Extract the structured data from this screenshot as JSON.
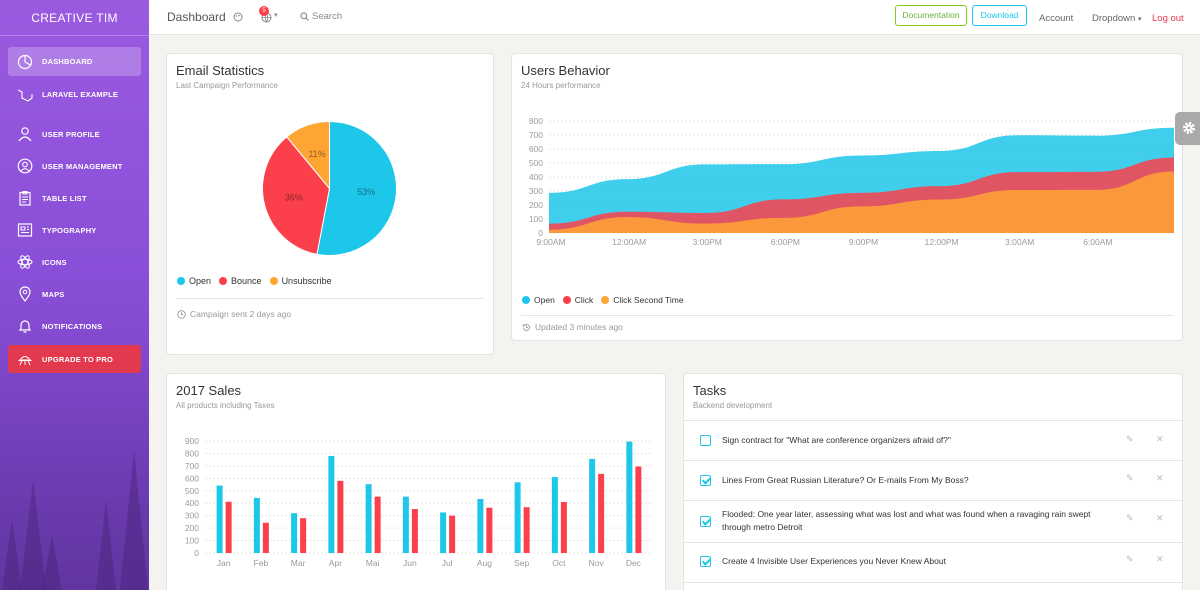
{
  "sidebar": {
    "brand": "CREATIVE TIM",
    "items": [
      {
        "label": "DASHBOARD",
        "icon": "chart-pie-icon"
      },
      {
        "label": "LARAVEL EXAMPLE",
        "icon": "laravel-icon"
      },
      {
        "label": "USER PROFILE",
        "icon": "user-icon"
      },
      {
        "label": "USER MANAGEMENT",
        "icon": "user-circle-icon"
      },
      {
        "label": "TABLE LIST",
        "icon": "clipboard-icon"
      },
      {
        "label": "TYPOGRAPHY",
        "icon": "news-paper-icon"
      },
      {
        "label": "ICONS",
        "icon": "atom-icon"
      },
      {
        "label": "MAPS",
        "icon": "map-pin-icon"
      },
      {
        "label": "NOTIFICATIONS",
        "icon": "bell-icon"
      },
      {
        "label": "UPGRADE TO PRO",
        "icon": "alien-icon"
      }
    ]
  },
  "topbar": {
    "title": "Dashboard",
    "notification_count": "5",
    "search": "Search",
    "documentation": "Documentation",
    "download": "Download",
    "account": "Account",
    "dropdown": "Dropdown",
    "logout": "Log out"
  },
  "email_stats": {
    "title": "Email Statistics",
    "subtitle": "Last Campaign Performance",
    "footer": "Campaign sent 2 days ago"
  },
  "users_behavior": {
    "title": "Users Behavior",
    "subtitle": "24 Hours performance",
    "footer": "Updated 3 minutes ago"
  },
  "sales": {
    "title": "2017 Sales",
    "subtitle": "All products including Taxes"
  },
  "tasks": {
    "title": "Tasks",
    "subtitle": "Backend development",
    "items": [
      {
        "text": "Sign contract for \"What are conference organizers afraid of?\"",
        "checked": false
      },
      {
        "text": "Lines From Great Russian Literature? Or E-mails From My Boss?",
        "checked": true
      },
      {
        "text": "Flooded: One year later, assessing what was lost and what was found when a ravaging rain swept through metro Detroit",
        "checked": true
      },
      {
        "text": "Create 4 Invisible User Experiences you Never Knew About",
        "checked": true
      }
    ]
  },
  "colors": {
    "cyan": "#1dc7ea",
    "red": "#fb404b",
    "orange": "#ffa534",
    "purple": "#9368e9",
    "pro": "#e2394f"
  },
  "chart_data": [
    {
      "type": "pie",
      "name": "Email Statistics",
      "slices": [
        {
          "label": "Open",
          "value": 53,
          "text": "53%",
          "color": "#1dc7ea"
        },
        {
          "label": "Bounce",
          "value": 36,
          "text": "36%",
          "color": "#fb404b"
        },
        {
          "label": "Unsubscribe",
          "value": 11,
          "text": "11%",
          "color": "#ffa534"
        }
      ]
    },
    {
      "type": "area",
      "name": "Users Behavior",
      "x": [
        "9:00AM",
        "12:00AM",
        "3:00PM",
        "6:00PM",
        "9:00PM",
        "12:00PM",
        "3:00AM",
        "6:00AM",
        ""
      ],
      "series": [
        {
          "name": "Open",
          "color": "#1dc7ea",
          "values": [
            287,
            385,
            490,
            492,
            554,
            586,
            698,
            695,
            752
          ]
        },
        {
          "name": "Click",
          "color": "#fb404b",
          "values": [
            67,
            152,
            143,
            240,
            287,
            335,
            435,
            437,
            539
          ]
        },
        {
          "name": "Click Second Time",
          "color": "#ffa534",
          "values": [
            23,
            113,
            67,
            108,
            190,
            239,
            307,
            308,
            439
          ]
        }
      ],
      "ylim": [
        0,
        800
      ],
      "yticks": [
        "0",
        "100",
        "200",
        "300",
        "400",
        "500",
        "600",
        "700",
        "800"
      ],
      "grid": true,
      "legend": "bottom-left"
    },
    {
      "type": "bar",
      "name": "2017 Sales",
      "categories": [
        "Jan",
        "Feb",
        "Mar",
        "Apr",
        "Mai",
        "Jun",
        "Jul",
        "Aug",
        "Sep",
        "Oct",
        "Nov",
        "Dec"
      ],
      "series": [
        {
          "color": "#1dc7ea",
          "values": [
            542,
            443,
            320,
            780,
            553,
            453,
            326,
            434,
            568,
            610,
            756,
            895
          ]
        },
        {
          "color": "#fb404b",
          "values": [
            412,
            243,
            280,
            580,
            453,
            353,
            300,
            364,
            368,
            410,
            636,
            695
          ]
        }
      ],
      "ylim": [
        0,
        900
      ],
      "yticks": [
        "0",
        "100",
        "200",
        "300",
        "400",
        "500",
        "600",
        "700",
        "800",
        "900"
      ],
      "grid": true
    }
  ]
}
